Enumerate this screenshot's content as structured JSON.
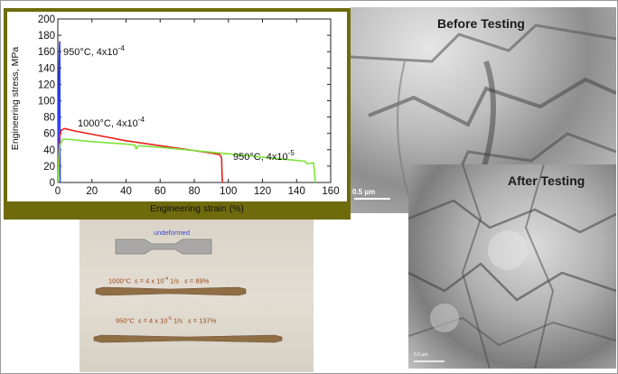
{
  "chart_data": {
    "type": "line",
    "xlabel": "Engineering strain (%)",
    "ylabel": "Engineering stress, MPa",
    "xlim": [
      0,
      160
    ],
    "ylim": [
      0,
      200
    ],
    "x_ticks": [
      "0",
      "20",
      "40",
      "60",
      "80",
      "100",
      "120",
      "140",
      "160"
    ],
    "y_ticks": [
      "0",
      "20",
      "40",
      "60",
      "80",
      "100",
      "120",
      "140",
      "160",
      "180",
      "200"
    ],
    "grid": false,
    "series": [
      {
        "name": "950°C, 4x10-4",
        "color": "#2a3cff",
        "x": [
          0,
          0.3,
          0.6,
          0.9,
          1.1,
          1.3
        ],
        "y": [
          0,
          60,
          120,
          160,
          172,
          0
        ]
      },
      {
        "name": "1000°C, 4x10-4",
        "color": "#e8201c",
        "x": [
          0,
          1,
          2,
          4,
          6,
          10,
          20,
          40,
          60,
          80,
          90,
          95,
          96,
          96.5
        ],
        "y": [
          0,
          55,
          64,
          66,
          65,
          63,
          59,
          51,
          45,
          39,
          36,
          34,
          30,
          0
        ]
      },
      {
        "name": "950°C, 4x10-5",
        "color": "#7de33a",
        "x": [
          0,
          1,
          3,
          5,
          10,
          20,
          40,
          45,
          46,
          47,
          60,
          80,
          100,
          120,
          140,
          145,
          146,
          150,
          151
        ],
        "y": [
          0,
          45,
          53,
          53,
          52,
          50,
          47,
          46,
          41,
          45,
          43,
          39,
          35,
          31,
          27,
          26,
          23,
          24,
          0
        ]
      }
    ],
    "annotations": [
      {
        "text": "950°C, 4x10",
        "exp": "-4"
      },
      {
        "text": "1000°C, 4x10",
        "exp": "-4"
      },
      {
        "text": "950°C, 4x10",
        "exp": "-5"
      }
    ]
  },
  "specimens": {
    "undeformed_label": "undeformed",
    "spec1": {
      "temp": "1000°C",
      "rate": "ε = 4 x 10",
      "rate_exp": "-4",
      "unit": " 1/s",
      "strain": "ε = 89%"
    },
    "spec2": {
      "temp": "950°C",
      "rate": "ε = 4 x 10",
      "rate_exp": "-5",
      "unit": " 1/s",
      "strain": "ε = 137%"
    }
  },
  "micrographs": {
    "before_title": "Before Testing",
    "before_scale": "0.5 µm",
    "after_title": "After Testing",
    "after_scale": "0.5 µm"
  }
}
